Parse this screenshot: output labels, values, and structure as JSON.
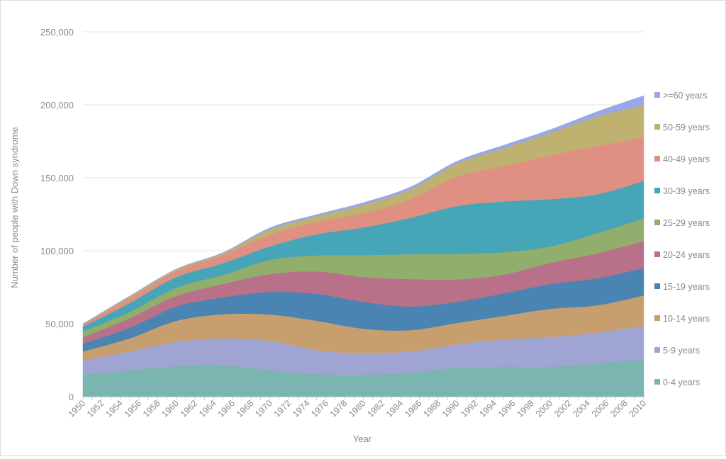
{
  "chart_data": {
    "type": "area",
    "stacked": true,
    "title": "",
    "xlabel": "Year",
    "ylabel": "Number of people with Down syndrome",
    "ylim": [
      0,
      250000
    ],
    "xlim": [
      1950,
      2010
    ],
    "y_ticks": [
      "0",
      "50,000",
      "100,000",
      "150,000",
      "200,000",
      "250,000"
    ],
    "y_tick_values": [
      0,
      50000,
      100000,
      150000,
      200000,
      250000
    ],
    "x_tick_values": [
      1950,
      1952,
      1954,
      1956,
      1958,
      1960,
      1962,
      1964,
      1966,
      1968,
      1970,
      1972,
      1974,
      1976,
      1978,
      1980,
      1982,
      1984,
      1986,
      1988,
      1990,
      1992,
      1994,
      1996,
      1998,
      2000,
      2002,
      2004,
      2006,
      2008,
      2010
    ],
    "grid": true,
    "legend_position": "right",
    "x": [
      1950,
      1955,
      1960,
      1965,
      1970,
      1975,
      1980,
      1985,
      1990,
      1995,
      2000,
      2005,
      2010
    ],
    "series": [
      {
        "name": "0-4 years",
        "color": "#7ab5b0",
        "values": [
          15200,
          18100,
          20900,
          21500,
          18100,
          15500,
          15000,
          16500,
          19700,
          20500,
          20500,
          23000,
          25400
        ]
      },
      {
        "name": "5-9 years",
        "color": "#a0a4d2",
        "values": [
          9700,
          12900,
          16600,
          18500,
          20200,
          16500,
          14600,
          14500,
          16200,
          18700,
          20300,
          21000,
          23000
        ]
      },
      {
        "name": "10-14 years",
        "color": "#c79f6e",
        "values": [
          6100,
          9000,
          14500,
          16500,
          18000,
          20000,
          17000,
          14600,
          14600,
          16100,
          19400,
          18600,
          21000
        ]
      },
      {
        "name": "15-19 years",
        "color": "#4a84b2",
        "values": [
          5400,
          7200,
          9800,
          11500,
          15500,
          18500,
          18400,
          16200,
          14500,
          15400,
          17000,
          18600,
          18800
        ]
      },
      {
        "name": "20-24 years",
        "color": "#b97089",
        "values": [
          4400,
          6500,
          7200,
          9200,
          12200,
          15300,
          17000,
          18800,
          15400,
          12900,
          14500,
          17000,
          18400
        ]
      },
      {
        "name": "25-29 years",
        "color": "#91ae6d",
        "values": [
          4000,
          4400,
          5700,
          6300,
          9700,
          11000,
          15000,
          17000,
          17500,
          15400,
          11300,
          13800,
          15600
        ]
      },
      {
        "name": "30-39 years",
        "color": "#47a5b8",
        "values": [
          3200,
          6100,
          7300,
          8000,
          9300,
          14500,
          19000,
          24900,
          32700,
          34800,
          32400,
          26700,
          25700
        ]
      },
      {
        "name": "40-49 years",
        "color": "#df9083",
        "values": [
          1600,
          3300,
          4000,
          5800,
          8000,
          8500,
          9700,
          12900,
          20200,
          24200,
          30000,
          33100,
          29900
        ]
      },
      {
        "name": "50-59 years",
        "color": "#bfb270",
        "values": [
          300,
          1000,
          1200,
          1100,
          3500,
          3800,
          5800,
          6500,
          8900,
          12200,
          15300,
          20200,
          22000
        ]
      },
      {
        "name": ">=60 years",
        "color": "#97a8e6",
        "values": [
          100,
          500,
          300,
          400,
          1200,
          1200,
          1500,
          1700,
          1600,
          2100,
          2300,
          3300,
          6500
        ]
      }
    ]
  }
}
